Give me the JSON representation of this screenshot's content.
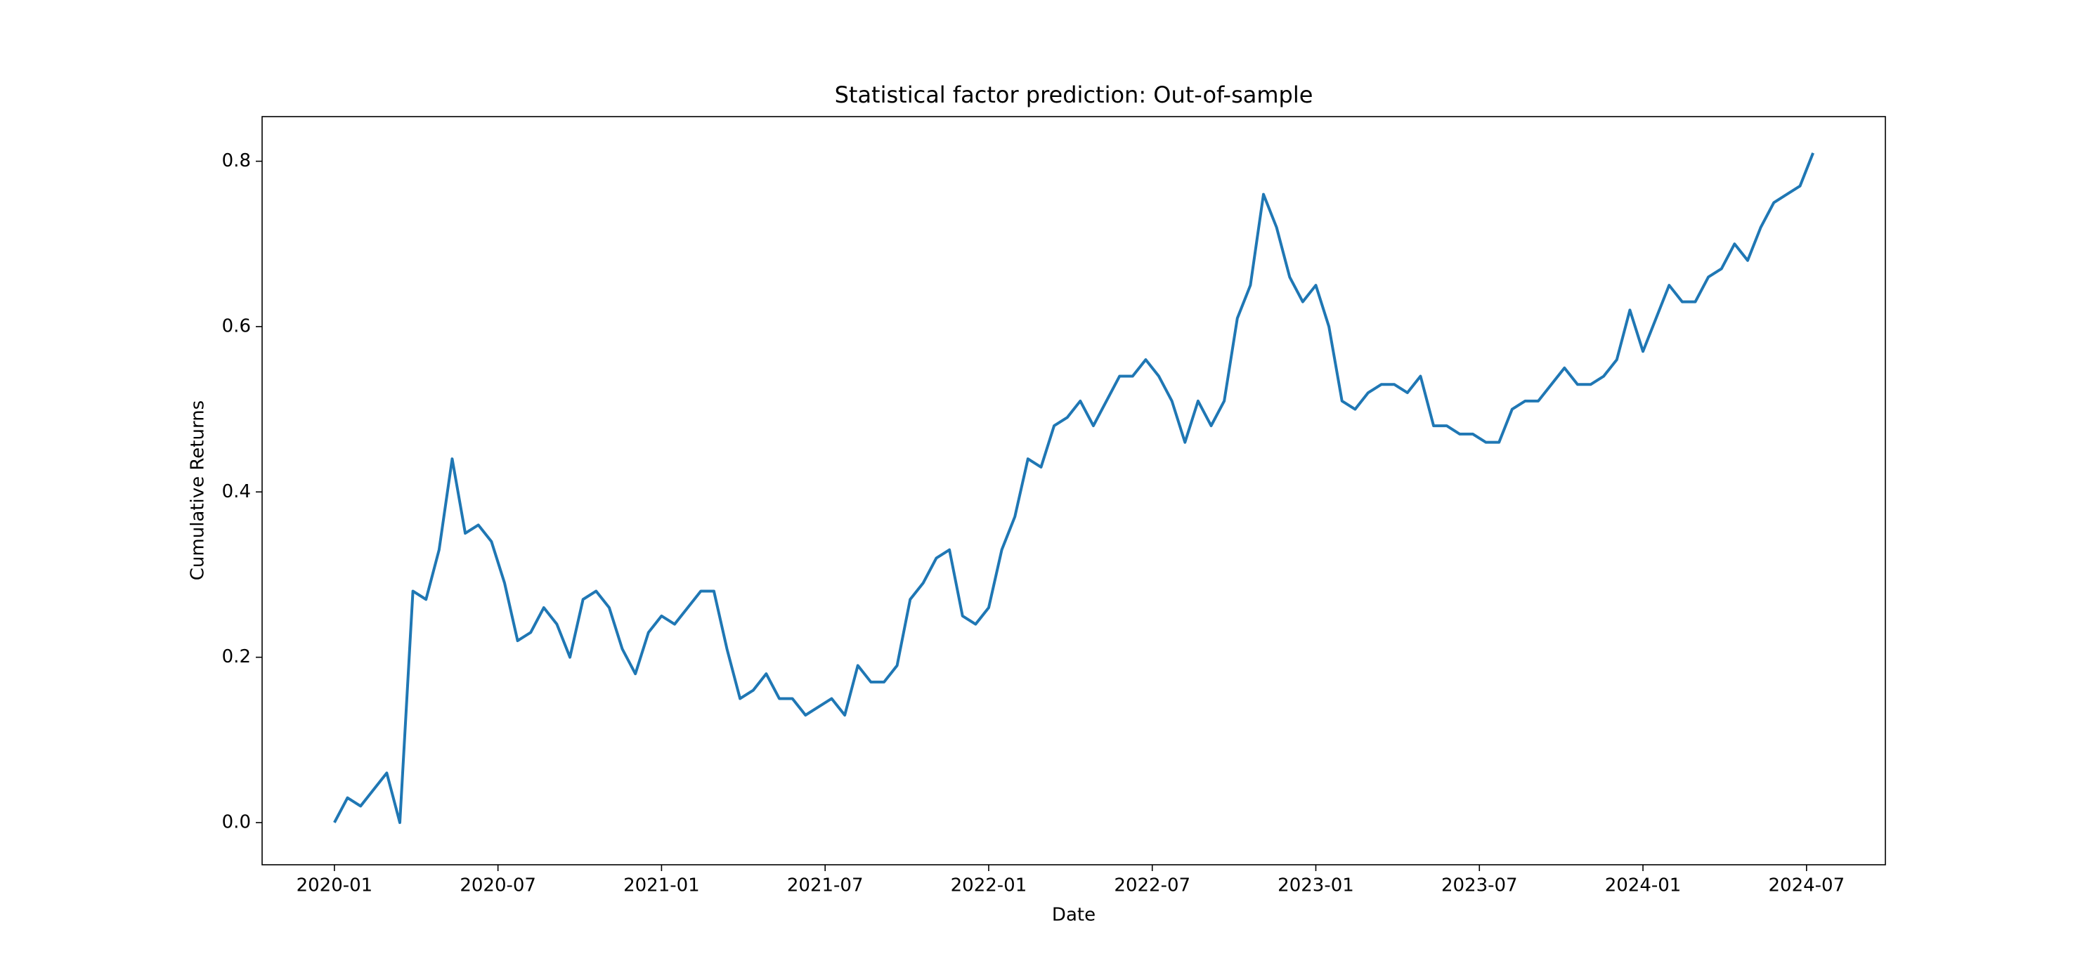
{
  "chart_data": {
    "type": "line",
    "title": "Statistical factor prediction: Out-of-sample",
    "x_label": "Date",
    "y_label": "Cumulative Returns",
    "xlim": [
      2019.779,
      2024.741
    ],
    "ylim": [
      -0.051,
      0.854
    ],
    "xticks": [
      {
        "value": 2020.0,
        "label": "2020-01"
      },
      {
        "value": 2020.5,
        "label": "2020-07"
      },
      {
        "value": 2021.0,
        "label": "2021-01"
      },
      {
        "value": 2021.5,
        "label": "2021-07"
      },
      {
        "value": 2022.0,
        "label": "2022-01"
      },
      {
        "value": 2022.5,
        "label": "2022-07"
      },
      {
        "value": 2023.0,
        "label": "2023-01"
      },
      {
        "value": 2023.5,
        "label": "2023-07"
      },
      {
        "value": 2024.0,
        "label": "2024-01"
      },
      {
        "value": 2024.5,
        "label": "2024-07"
      }
    ],
    "yticks": [
      {
        "value": 0,
        "label": "0.0"
      },
      0.2,
      0.4,
      0.6,
      0.8
    ],
    "grid": false,
    "x": [
      2020.0,
      2020.04,
      2020.08,
      2020.12,
      2020.16,
      2020.2,
      2020.24,
      2020.28,
      2020.32,
      2020.36,
      2020.4,
      2020.44,
      2020.48,
      2020.52,
      2020.56,
      2020.6,
      2020.64,
      2020.68,
      2020.72,
      2020.76,
      2020.8,
      2020.84,
      2020.88,
      2020.92,
      2020.96,
      2021.0,
      2021.04,
      2021.08,
      2021.12,
      2021.16,
      2021.2,
      2021.24,
      2021.28,
      2021.32,
      2021.36,
      2021.4,
      2021.44,
      2021.48,
      2021.52,
      2021.56,
      2021.6,
      2021.64,
      2021.68,
      2021.72,
      2021.76,
      2021.8,
      2021.84,
      2021.88,
      2021.92,
      2021.96,
      2022.0,
      2022.04,
      2022.08,
      2022.12,
      2022.16,
      2022.2,
      2022.24,
      2022.28,
      2022.32,
      2022.36,
      2022.4,
      2022.44,
      2022.48,
      2022.52,
      2022.56,
      2022.6,
      2022.64,
      2022.68,
      2022.72,
      2022.76,
      2022.8,
      2022.84,
      2022.88,
      2022.92,
      2022.96,
      2023.0,
      2023.04,
      2023.08,
      2023.12,
      2023.16,
      2023.2,
      2023.24,
      2023.28,
      2023.32,
      2023.36,
      2023.4,
      2023.44,
      2023.48,
      2023.52,
      2023.56,
      2023.6,
      2023.64,
      2023.68,
      2023.72,
      2023.76,
      2023.8,
      2023.84,
      2023.88,
      2023.92,
      2023.96,
      2024.0,
      2024.04,
      2024.08,
      2024.12,
      2024.16,
      2024.2,
      2024.24,
      2024.28,
      2024.32,
      2024.36,
      2024.4,
      2024.44,
      2024.48,
      2024.52
    ],
    "series": [
      {
        "name": "Cumulative Returns",
        "color": "#1f77b4",
        "values": [
          0.0,
          0.03,
          0.02,
          0.04,
          0.06,
          0.0,
          0.28,
          0.27,
          0.33,
          0.44,
          0.35,
          0.36,
          0.34,
          0.29,
          0.22,
          0.23,
          0.26,
          0.24,
          0.2,
          0.27,
          0.28,
          0.26,
          0.21,
          0.18,
          0.23,
          0.25,
          0.24,
          0.26,
          0.28,
          0.28,
          0.21,
          0.15,
          0.16,
          0.18,
          0.15,
          0.15,
          0.13,
          0.14,
          0.15,
          0.13,
          0.19,
          0.17,
          0.17,
          0.19,
          0.27,
          0.29,
          0.32,
          0.33,
          0.25,
          0.24,
          0.26,
          0.33,
          0.37,
          0.44,
          0.43,
          0.48,
          0.49,
          0.51,
          0.48,
          0.51,
          0.54,
          0.54,
          0.56,
          0.54,
          0.51,
          0.46,
          0.51,
          0.48,
          0.51,
          0.61,
          0.65,
          0.76,
          0.72,
          0.66,
          0.63,
          0.65,
          0.6,
          0.51,
          0.5,
          0.52,
          0.53,
          0.53,
          0.52,
          0.54,
          0.48,
          0.48,
          0.47,
          0.47,
          0.46,
          0.46,
          0.5,
          0.51,
          0.51,
          0.53,
          0.55,
          0.53,
          0.53,
          0.54,
          0.56,
          0.62,
          0.57,
          0.61,
          0.65,
          0.63,
          0.63,
          0.66,
          0.67,
          0.7,
          0.68,
          0.72,
          0.75,
          0.76,
          0.77,
          0.81
        ]
      }
    ]
  }
}
